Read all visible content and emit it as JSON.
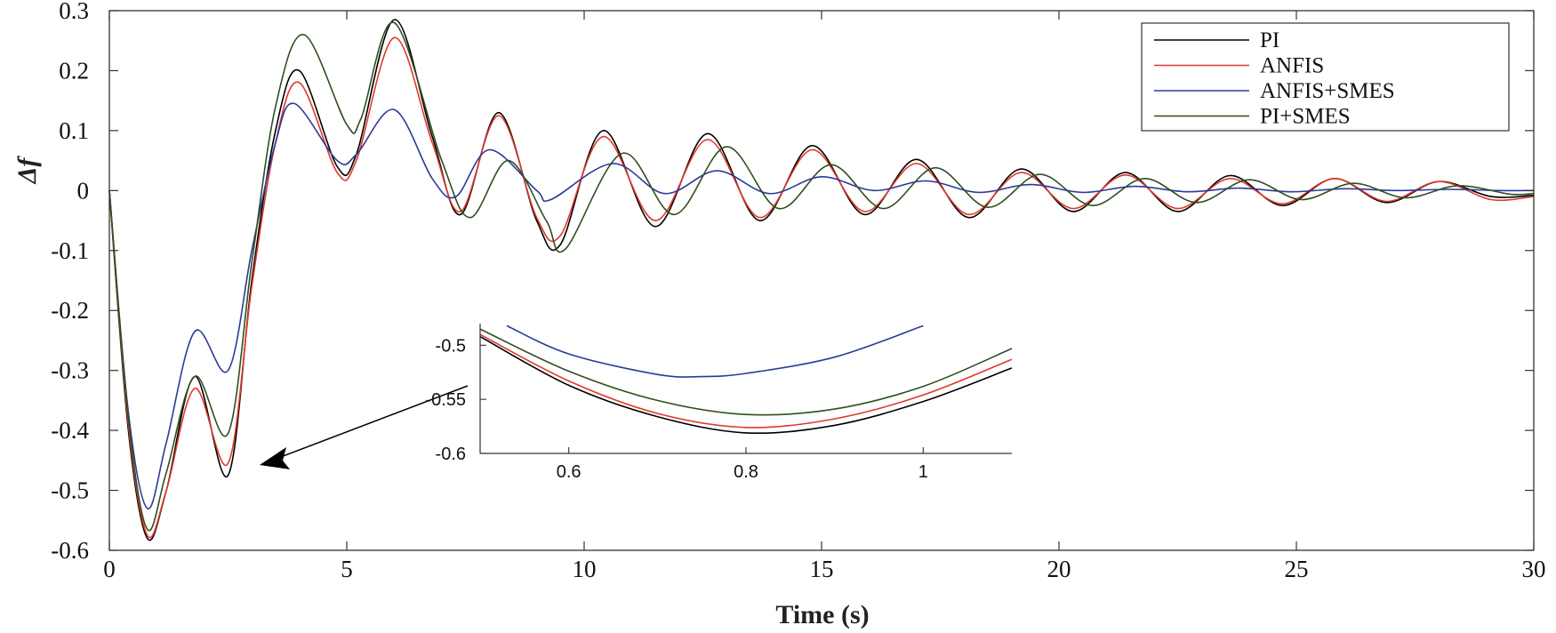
{
  "chart_data": [
    {
      "type": "line",
      "title": "",
      "xlabel": "Time (s)",
      "ylabel": "Δf",
      "xlim": [
        0,
        30
      ],
      "ylim": [
        -0.6,
        0.3
      ],
      "xticks": [
        0,
        5,
        10,
        15,
        20,
        25,
        30
      ],
      "xtick_labels": [
        "0",
        "5",
        "10",
        "15",
        "20",
        "25",
        "30"
      ],
      "yticks": [
        0.3,
        0.2,
        0.1,
        0,
        -0.1,
        -0.2,
        -0.3,
        -0.4,
        -0.5,
        -0.6
      ],
      "ytick_labels": [
        "0.3",
        "0.2",
        "0.1",
        "0",
        "-0.1",
        "-0.2",
        "-0.3",
        "-0.4",
        "-0.5",
        "-0.6"
      ],
      "grid": false,
      "legend_position": "top-right",
      "series": [
        {
          "name": "PI",
          "color": "#000000",
          "x": [
            0,
            0.4,
            0.8,
            1.2,
            1.8,
            2.5,
            3.0,
            3.5,
            4.0,
            4.8,
            5.2,
            6.0,
            6.8,
            7.4,
            8.2,
            9.0,
            9.5,
            10.4,
            11.5,
            12.6,
            13.7,
            14.8,
            15.9,
            17.0,
            18.1,
            19.2,
            20.3,
            21.4,
            22.5,
            23.6,
            24.7,
            25.8,
            26.9,
            28.0,
            29.1,
            30
          ],
          "y": [
            0,
            -0.4,
            -0.58,
            -0.5,
            -0.31,
            -0.475,
            -0.15,
            0.1,
            0.2,
            0.04,
            0.06,
            0.285,
            0.09,
            -0.04,
            0.13,
            -0.05,
            -0.09,
            0.1,
            -0.06,
            0.095,
            -0.05,
            0.075,
            -0.04,
            0.052,
            -0.045,
            0.036,
            -0.035,
            0.03,
            -0.035,
            0.025,
            -0.025,
            0.02,
            -0.02,
            0.015,
            -0.01,
            -0.008
          ]
        },
        {
          "name": "ANFIS",
          "color": "#e0392b",
          "x": [
            0,
            0.4,
            0.8,
            1.2,
            1.8,
            2.5,
            3.0,
            3.5,
            4.0,
            4.8,
            5.2,
            6.0,
            6.8,
            7.4,
            8.2,
            9.0,
            9.5,
            10.4,
            11.5,
            12.6,
            13.7,
            14.8,
            15.9,
            17.0,
            18.1,
            19.2,
            20.3,
            21.4,
            22.5,
            23.6,
            24.7,
            25.8,
            26.9,
            28.0,
            29.1,
            30
          ],
          "y": [
            0,
            -0.39,
            -0.575,
            -0.5,
            -0.33,
            -0.455,
            -0.16,
            0.08,
            0.18,
            0.03,
            0.05,
            0.255,
            0.08,
            -0.035,
            0.125,
            -0.045,
            -0.075,
            0.09,
            -0.05,
            0.085,
            -0.045,
            0.068,
            -0.035,
            0.045,
            -0.04,
            0.03,
            -0.03,
            0.026,
            -0.03,
            0.02,
            -0.022,
            0.02,
            -0.018,
            0.015,
            -0.015,
            -0.01
          ]
        },
        {
          "name": "ANFIS+SMES",
          "color": "#2b3a9a",
          "x": [
            0,
            0.4,
            0.8,
            1.2,
            1.8,
            2.5,
            3.0,
            3.5,
            3.9,
            4.8,
            5.2,
            6.0,
            6.8,
            7.3,
            8.0,
            9.0,
            9.3,
            10.6,
            11.7,
            12.8,
            13.9,
            15.0,
            16.1,
            17.2,
            18.3,
            19.4,
            20.5,
            21.6,
            22.7,
            23.8,
            24.9,
            26.0,
            27.1,
            28.2,
            29.3,
            30
          ],
          "y": [
            0,
            -0.37,
            -0.53,
            -0.42,
            -0.235,
            -0.3,
            -0.1,
            0.08,
            0.145,
            0.05,
            0.06,
            0.135,
            0.02,
            -0.01,
            0.068,
            0.0,
            -0.015,
            0.045,
            -0.005,
            0.033,
            -0.005,
            0.023,
            0.0,
            0.016,
            -0.003,
            0.01,
            -0.003,
            0.007,
            -0.002,
            0.004,
            -0.002,
            0.003,
            0.0,
            0.002,
            0.0,
            0.0
          ]
        },
        {
          "name": "PI+SMES",
          "color": "#2f4f1f",
          "x": [
            0,
            0.4,
            0.8,
            1.2,
            1.8,
            2.5,
            3.0,
            3.5,
            4.1,
            5.0,
            5.3,
            6.0,
            7.0,
            7.6,
            8.4,
            9.2,
            9.6,
            10.8,
            11.9,
            13.0,
            14.1,
            15.2,
            16.3,
            17.4,
            18.5,
            19.6,
            20.7,
            21.8,
            22.9,
            24.0,
            25.1,
            26.2,
            27.3,
            28.4,
            29.5,
            30
          ],
          "y": [
            0,
            -0.38,
            -0.565,
            -0.47,
            -0.31,
            -0.405,
            -0.12,
            0.14,
            0.26,
            0.11,
            0.12,
            0.28,
            0.05,
            -0.045,
            0.05,
            -0.05,
            -0.098,
            0.062,
            -0.04,
            0.073,
            -0.03,
            0.043,
            -0.03,
            0.038,
            -0.028,
            0.027,
            -0.025,
            0.02,
            -0.02,
            0.018,
            -0.015,
            0.012,
            -0.012,
            0.008,
            -0.006,
            -0.005
          ]
        }
      ]
    },
    {
      "type": "line",
      "title": "",
      "xlabel": "",
      "ylabel": "",
      "xlim": [
        0.5,
        1.1
      ],
      "ylim": [
        -0.6,
        -0.48
      ],
      "xticks": [
        0.6,
        0.8,
        1
      ],
      "xtick_labels": [
        "0.6",
        "0.8",
        "1"
      ],
      "yticks": [
        -0.5,
        -0.55,
        -0.6
      ],
      "ytick_labels": [
        "-0.5",
        "-0.55",
        "-0.6"
      ],
      "grid": false,
      "series": [
        {
          "color": "#000000",
          "x": [
            0.5,
            0.6,
            0.7,
            0.8,
            0.9,
            1.0,
            1.1
          ],
          "y": [
            -0.492,
            -0.537,
            -0.566,
            -0.581,
            -0.574,
            -0.552,
            -0.521
          ]
        },
        {
          "color": "#e0392b",
          "x": [
            0.5,
            0.6,
            0.7,
            0.8,
            0.9,
            1.0,
            1.1
          ],
          "y": [
            -0.49,
            -0.533,
            -0.563,
            -0.576,
            -0.568,
            -0.546,
            -0.513
          ]
        },
        {
          "color": "#2b3a9a",
          "x": [
            0.53,
            0.6,
            0.7,
            0.75,
            0.8,
            0.9,
            1.0
          ],
          "y": [
            -0.482,
            -0.508,
            -0.527,
            -0.529,
            -0.526,
            -0.511,
            -0.482
          ]
        },
        {
          "color": "#2f4f1f",
          "x": [
            0.5,
            0.6,
            0.7,
            0.8,
            0.9,
            1.0,
            1.1
          ],
          "y": [
            -0.485,
            -0.524,
            -0.551,
            -0.564,
            -0.559,
            -0.538,
            -0.503
          ]
        }
      ]
    }
  ]
}
